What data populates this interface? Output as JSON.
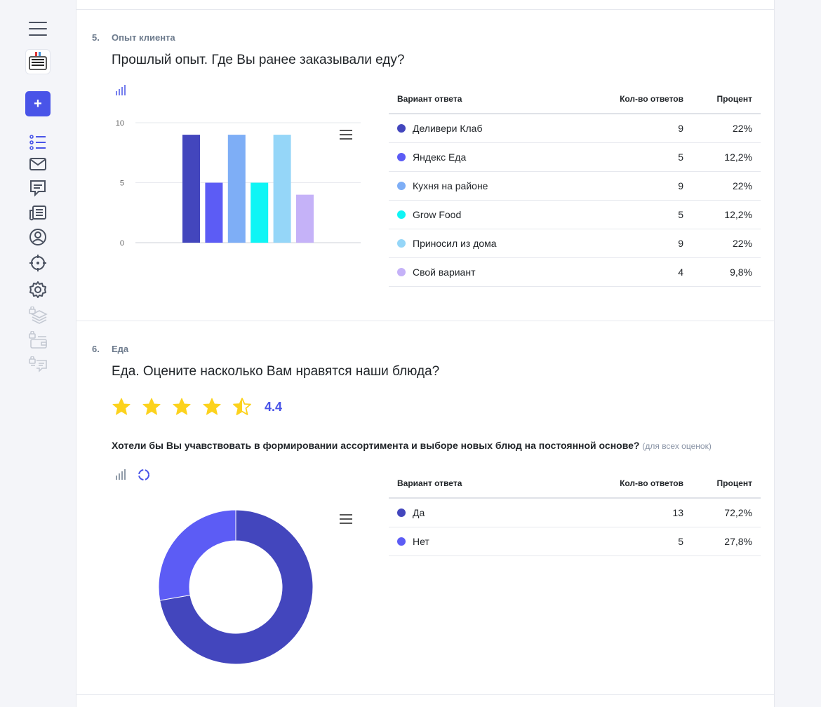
{
  "sidebar": {
    "logo_text": "ЗА ОБЕ ЩЕКИ",
    "add_label": "+",
    "icons": [
      "list-check-icon",
      "mail-icon",
      "chat-icon",
      "news-icon",
      "user-circle-icon",
      "target-icon",
      "gear-icon",
      "layers-lock-icon",
      "wallet-lock-icon",
      "messages-lock-icon"
    ]
  },
  "q5": {
    "num": "5.",
    "category": "Опыт клиента",
    "title": "Прошлый опыт. Где Вы ранее заказывали еду?",
    "table": {
      "headers": [
        "Вариант ответа",
        "Кол-во ответов",
        "Процент"
      ],
      "rows": [
        {
          "label": "Деливери Клаб",
          "count": "9",
          "percent": "22%",
          "color": "#4346bd"
        },
        {
          "label": "Яндекс Еда",
          "count": "5",
          "percent": "12,2%",
          "color": "#5c5cf5"
        },
        {
          "label": "Кухня на районе",
          "count": "9",
          "percent": "22%",
          "color": "#7eaef6"
        },
        {
          "label": "Grow Food",
          "count": "5",
          "percent": "12,2%",
          "color": "#0ff5f5"
        },
        {
          "label": "Приносил из дома",
          "count": "9",
          "percent": "22%",
          "color": "#95d6f8"
        },
        {
          "label": "Свой вариант",
          "count": "4",
          "percent": "9,8%",
          "color": "#c5b2f8"
        }
      ]
    }
  },
  "q6": {
    "num": "6.",
    "category": "Еда",
    "title": "Еда. Оцените насколько Вам нравятся наши блюда?",
    "rating": "4.4",
    "rating_value": 4.4,
    "subquestion": "Хотели бы Вы учавствовать в формировании ассортимента и выборе новых блюд на постоянной основе?",
    "subquestion_note": "(для всех оценок)",
    "table": {
      "headers": [
        "Вариант ответа",
        "Кол-во ответов",
        "Процент"
      ],
      "rows": [
        {
          "label": "Да",
          "count": "13",
          "percent": "72,2%",
          "color": "#4346bd"
        },
        {
          "label": "Нет",
          "count": "5",
          "percent": "27,8%",
          "color": "#5c5cf5"
        }
      ]
    }
  },
  "chart_data": [
    {
      "type": "bar",
      "categories": [
        "Деливери Клаб",
        "Яндекс Еда",
        "Кухня на районе",
        "Grow Food",
        "Приносил из дома",
        "Свой вариант"
      ],
      "values": [
        9,
        5,
        9,
        5,
        9,
        4
      ],
      "colors": [
        "#4346bd",
        "#5c5cf5",
        "#7eaef6",
        "#0ff5f5",
        "#95d6f8",
        "#c5b2f8"
      ],
      "ylim": [
        0,
        10
      ],
      "yticks": [
        "0",
        "5",
        "10"
      ],
      "grid": true
    },
    {
      "type": "pie",
      "style": "donut",
      "categories": [
        "Да",
        "Нет"
      ],
      "values": [
        13,
        5
      ],
      "colors": [
        "#4346bd",
        "#5c5cf5"
      ]
    }
  ]
}
